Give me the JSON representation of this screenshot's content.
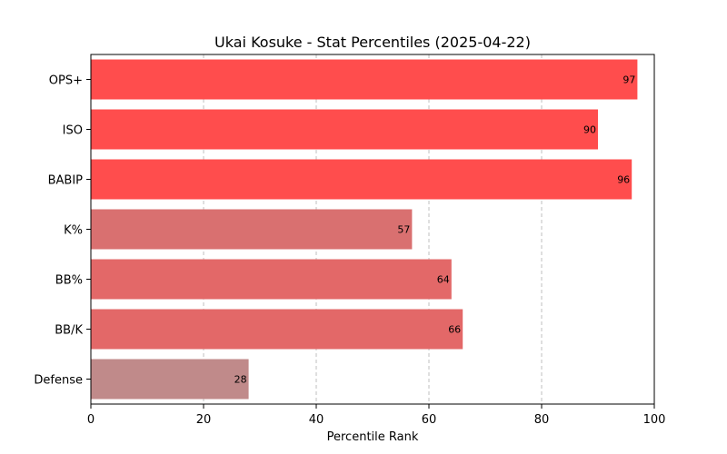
{
  "chart_data": {
    "type": "bar",
    "orientation": "horizontal",
    "title": "Ukai Kosuke - Stat Percentiles (2025-04-22)",
    "xlabel": "Percentile Rank",
    "ylabel": "",
    "xlim": [
      0,
      100
    ],
    "xticks": [
      0,
      20,
      40,
      60,
      80,
      100
    ],
    "grid": "x-dashed",
    "categories": [
      "OPS+",
      "ISO",
      "BABIP",
      "K%",
      "BB%",
      "BB/K",
      "Defense"
    ],
    "values": [
      97,
      90,
      96,
      57,
      64,
      66,
      28
    ],
    "colors": [
      "#ff4d4d",
      "#ff4d4d",
      "#ff4d4d",
      "#d97070",
      "#e36868",
      "#e36868",
      "#c08a8a"
    ]
  }
}
